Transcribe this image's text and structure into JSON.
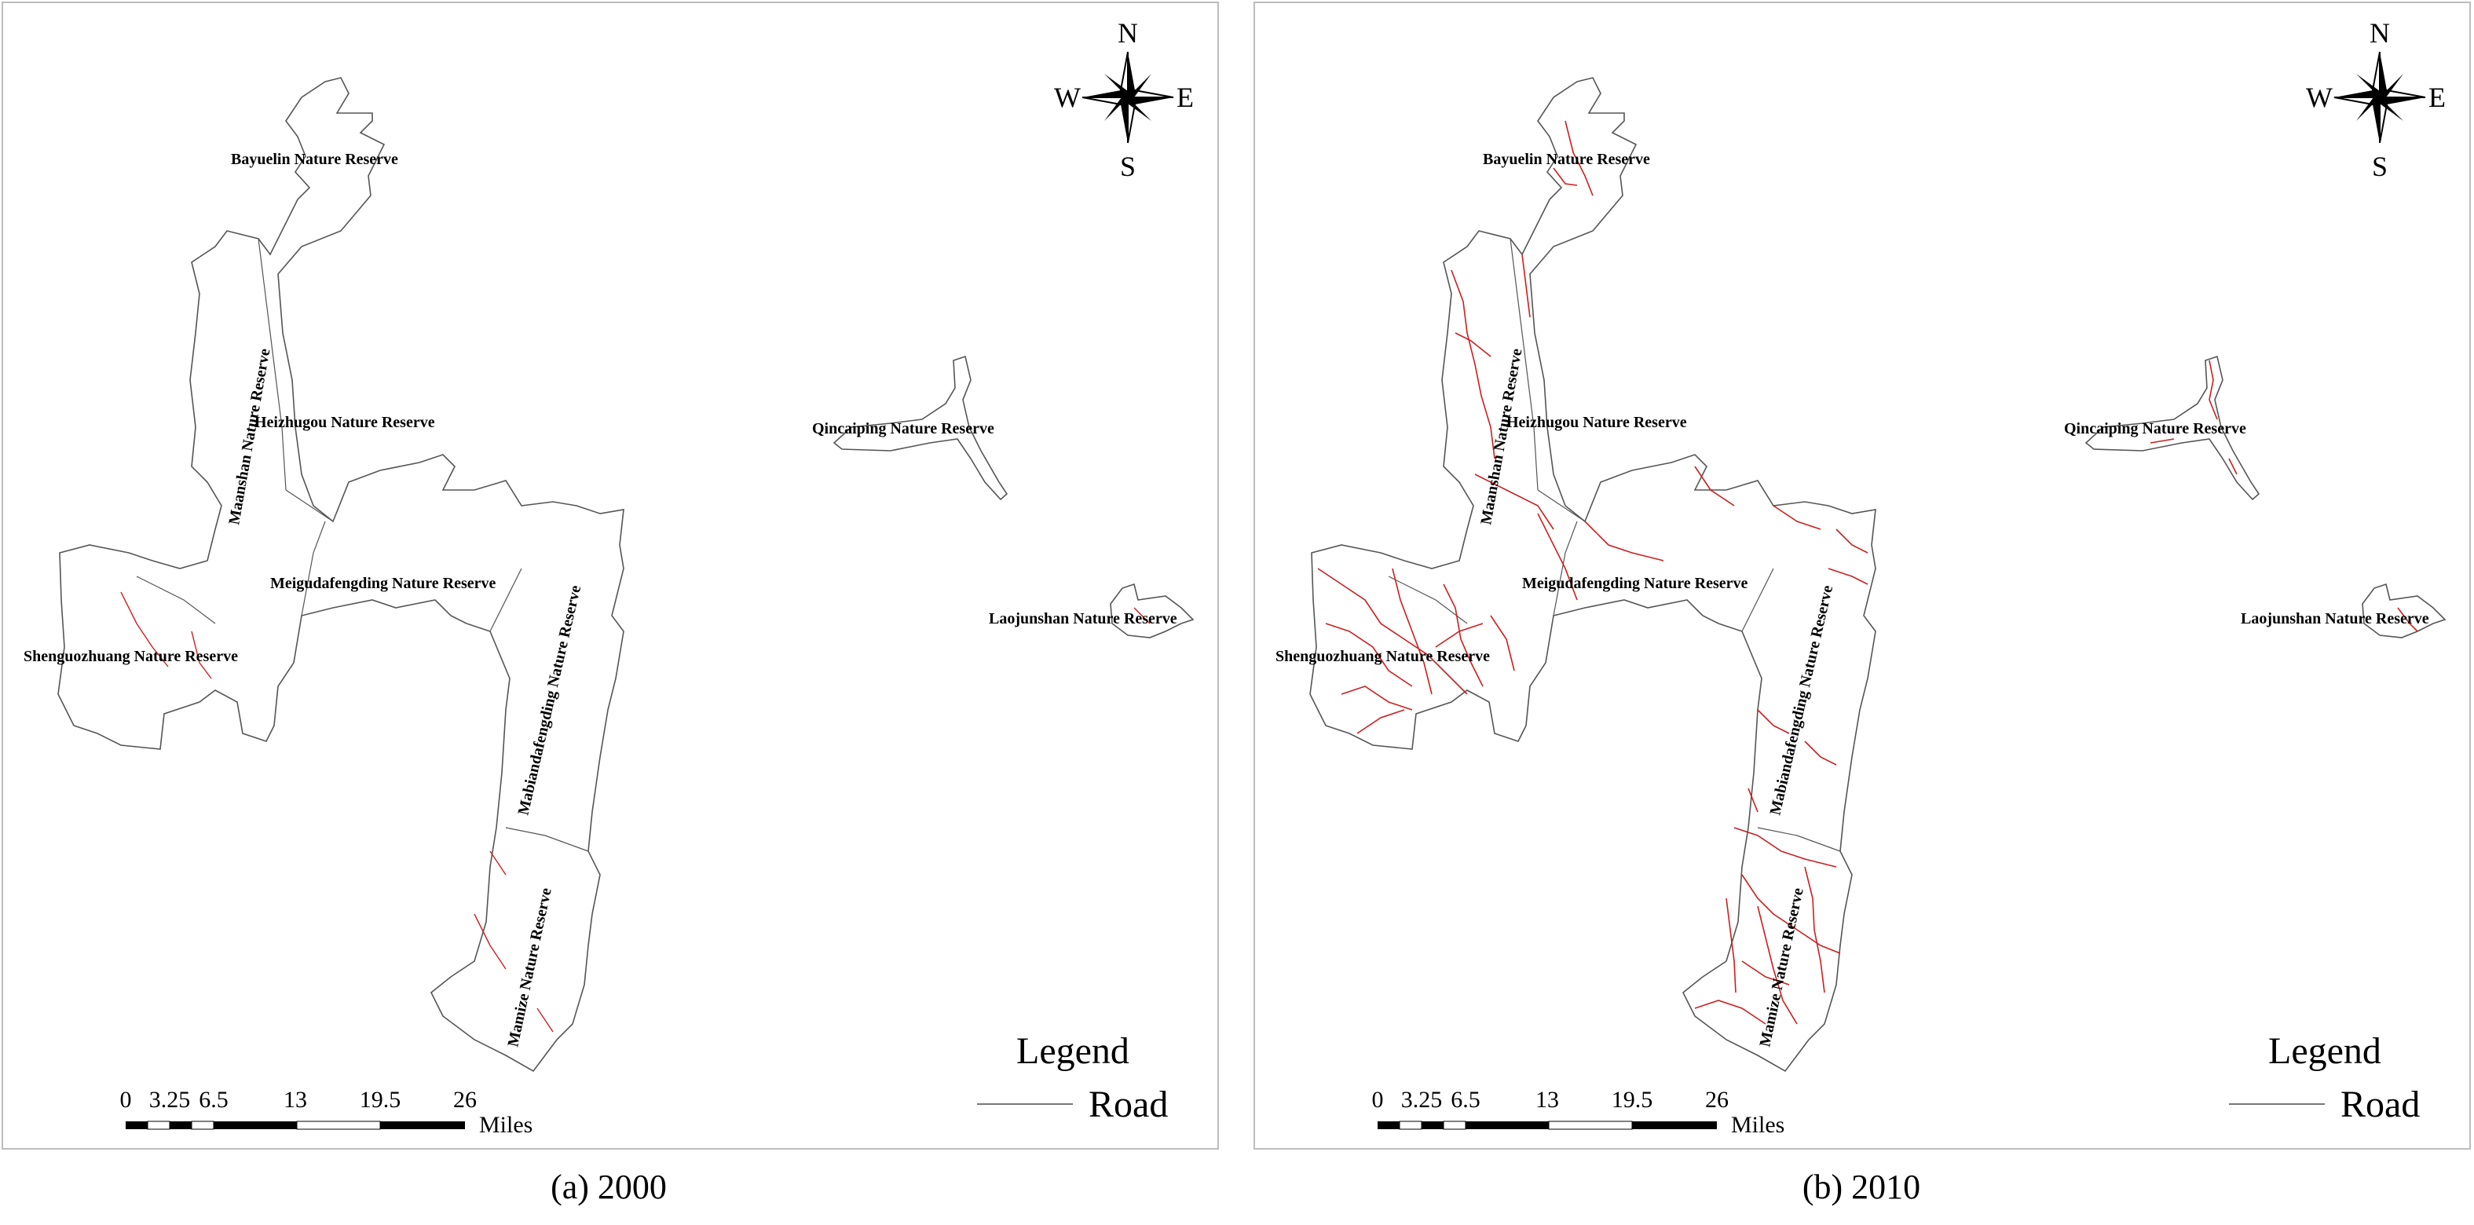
{
  "panels": [
    {
      "caption": "(a) 2000",
      "year": 2000,
      "reserves": [
        "Bayuelin Nature Reserve",
        "Heizhugou Nature Reserve",
        "Maanshan Nature Reserve",
        "Meigudafengding Nature Reserve",
        "Shenguozhuang Nature Reserve",
        "Mabiandafengding Nature Reserve",
        "Mamize Nature Reserve",
        "Qincaiping Nature Reserve",
        "Laojunshan Nature Reserve"
      ],
      "compass": {
        "n": "N",
        "s": "S",
        "e": "E",
        "w": "W"
      },
      "legend": {
        "title": "Legend",
        "item": "Road"
      },
      "scale": {
        "ticks": [
          "0",
          "3.25",
          "6.5",
          "13",
          "19.5",
          "26"
        ],
        "unit": "Miles"
      }
    },
    {
      "caption": "(b) 2010",
      "year": 2010,
      "reserves": [
        "Bayuelin Nature Reserve",
        "Heizhugou Nature Reserve",
        "Maanshan Nature Reserve",
        "Meigudafengding Nature Reserve",
        "Shenguozhuang Nature Reserve",
        "Mabiandafengding Nature Reserve",
        "Mamize Nature Reserve",
        "Qincaiping Nature Reserve",
        "Laojunshan Nature Reserve"
      ],
      "compass": {
        "n": "N",
        "s": "S",
        "e": "E",
        "w": "W"
      },
      "legend": {
        "title": "Legend",
        "item": "Road"
      },
      "scale": {
        "ticks": [
          "0",
          "3.25",
          "6.5",
          "13",
          "19.5",
          "26"
        ],
        "unit": "Miles"
      }
    }
  ],
  "colors": {
    "boundary": "#555555",
    "road": "#cc1f1f",
    "legend_line": "#777777"
  },
  "road_density": {
    "2000": "sparse",
    "2010": "dense"
  }
}
